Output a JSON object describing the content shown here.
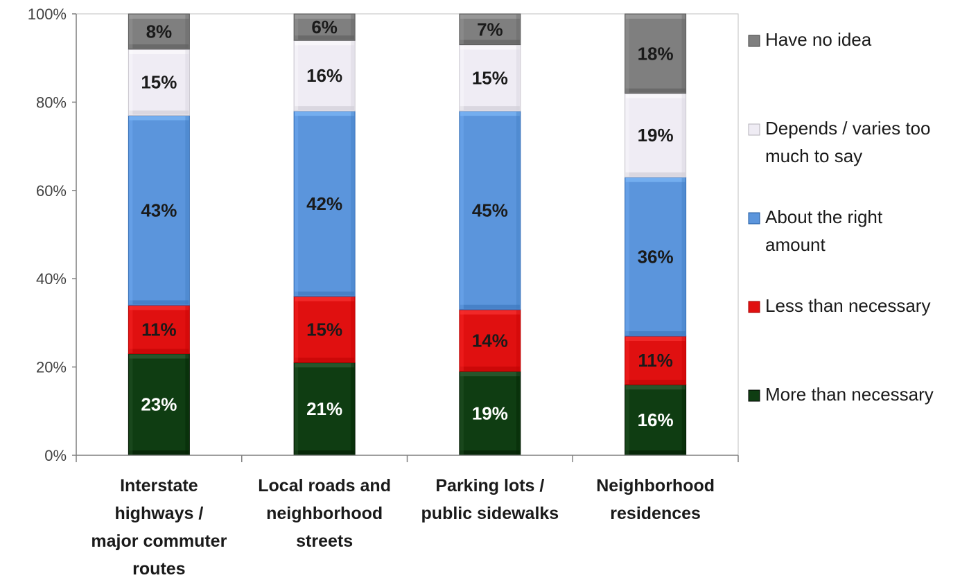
{
  "chart_data": {
    "type": "bar",
    "stacked": true,
    "categories": [
      [
        "Interstate",
        "highways /",
        "major commuter",
        "routes"
      ],
      [
        "Local roads and",
        "neighborhood",
        "streets"
      ],
      [
        "Parking lots /",
        "public sidewalks"
      ],
      [
        "Neighborhood",
        "residences"
      ]
    ],
    "series": [
      {
        "name": "More than necessary",
        "values": [
          23,
          21,
          19,
          16
        ],
        "labels": [
          "23%",
          "21%",
          "19%",
          "16%"
        ],
        "color": "#0f3d12",
        "label_color": "#ffffff"
      },
      {
        "name": "Less than necessary",
        "values": [
          11,
          15,
          14,
          11
        ],
        "labels": [
          "11%",
          "15%",
          "14%",
          "11%"
        ],
        "color": "#e01010",
        "label_color": "#1a1a1a"
      },
      {
        "name": "About the right amount",
        "values": [
          43,
          42,
          45,
          36
        ],
        "labels": [
          "43%",
          "42%",
          "45%",
          "36%"
        ],
        "color": "#5b95dc",
        "label_color": "#1a1a1a"
      },
      {
        "name": "Depends / varies too much to say",
        "values": [
          15,
          16,
          15,
          19
        ],
        "labels": [
          "15%",
          "16%",
          "15%",
          "19%"
        ],
        "color": "#efecf4",
        "label_color": "#1a1a1a"
      },
      {
        "name": "Have no idea",
        "values": [
          8,
          6,
          7,
          18
        ],
        "labels": [
          "8%",
          "6%",
          "7%",
          "18%"
        ],
        "color": "#7f7f7f",
        "label_color": "#1a1a1a"
      }
    ],
    "legend": [
      {
        "lines": [
          "Have no idea"
        ],
        "color": "#7f7f7f"
      },
      {
        "lines": [
          "Depends / varies too",
          "much to say"
        ],
        "color": "#efecf4"
      },
      {
        "lines": [
          "About the right",
          "amount"
        ],
        "color": "#5b95dc"
      },
      {
        "lines": [
          "Less than necessary"
        ],
        "color": "#e01010"
      },
      {
        "lines": [
          "More than necessary"
        ],
        "color": "#0f3d12"
      }
    ],
    "ylim": [
      0,
      100
    ],
    "yticks": [
      0,
      20,
      40,
      60,
      80,
      100
    ],
    "ytick_labels": [
      "0%",
      "20%",
      "40%",
      "60%",
      "80%",
      "100%"
    ],
    "legend_position": "right",
    "grid": false,
    "title": "",
    "xlabel": "",
    "ylabel": ""
  }
}
